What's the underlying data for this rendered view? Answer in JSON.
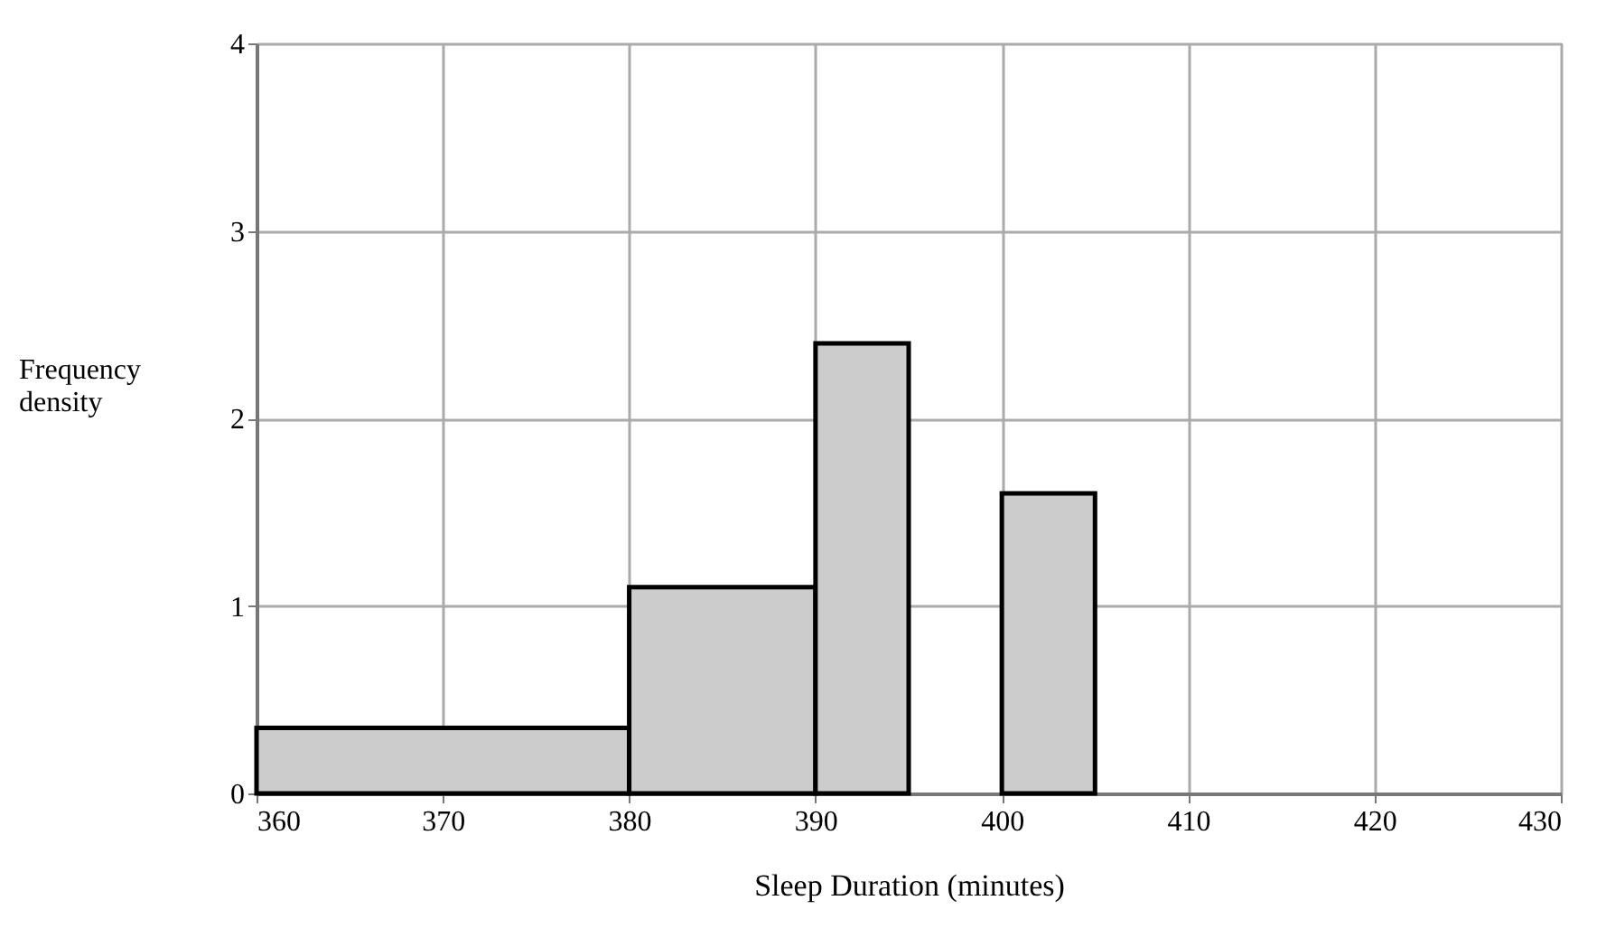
{
  "chart_data": {
    "type": "histogram",
    "xlabel": "Sleep Duration (minutes)",
    "ylabel": "Frequency density",
    "bins": [
      360,
      380,
      390,
      395,
      400,
      405
    ],
    "values": [
      0.35,
      1.1,
      2.4,
      0,
      1.6
    ],
    "color": "#cccccc",
    "xlim": [
      360,
      430
    ],
    "xticks": [
      360,
      370,
      380,
      390,
      400,
      410,
      420,
      430
    ],
    "ylim": [
      0,
      4
    ],
    "yticks": [
      0,
      1,
      2,
      3,
      4
    ],
    "grid": true
  }
}
